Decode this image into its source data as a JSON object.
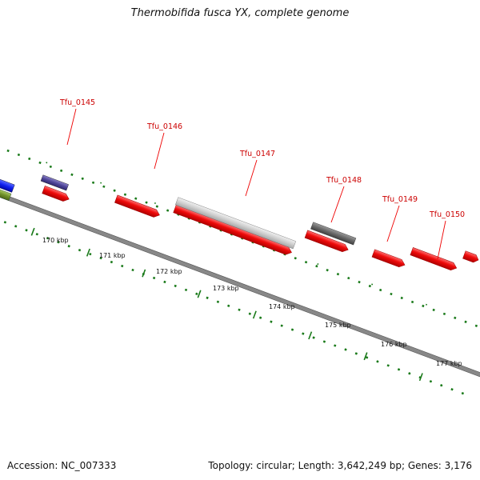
{
  "title": "Thermobifida fusca YX, complete genome",
  "footer": {
    "accession": "Accession: NC_007333",
    "summary": "Topology: circular; Length: 3,642,249 bp; Genes: 3,176"
  },
  "colors": {
    "gene": "#e8000a",
    "tick": "#1a7a1a",
    "backbone": "#808080",
    "label": "#cc0000"
  },
  "scale_labels": [
    "170 kbp",
    "171 kbp",
    "172 kbp",
    "173 kbp",
    "174 kbp",
    "175 kbp",
    "176 kbp",
    "177 kbp"
  ],
  "gene_labels": [
    "Tfu_0145",
    "Tfu_0146",
    "Tfu_0147",
    "Tfu_0148",
    "Tfu_0149",
    "Tfu_0150"
  ]
}
